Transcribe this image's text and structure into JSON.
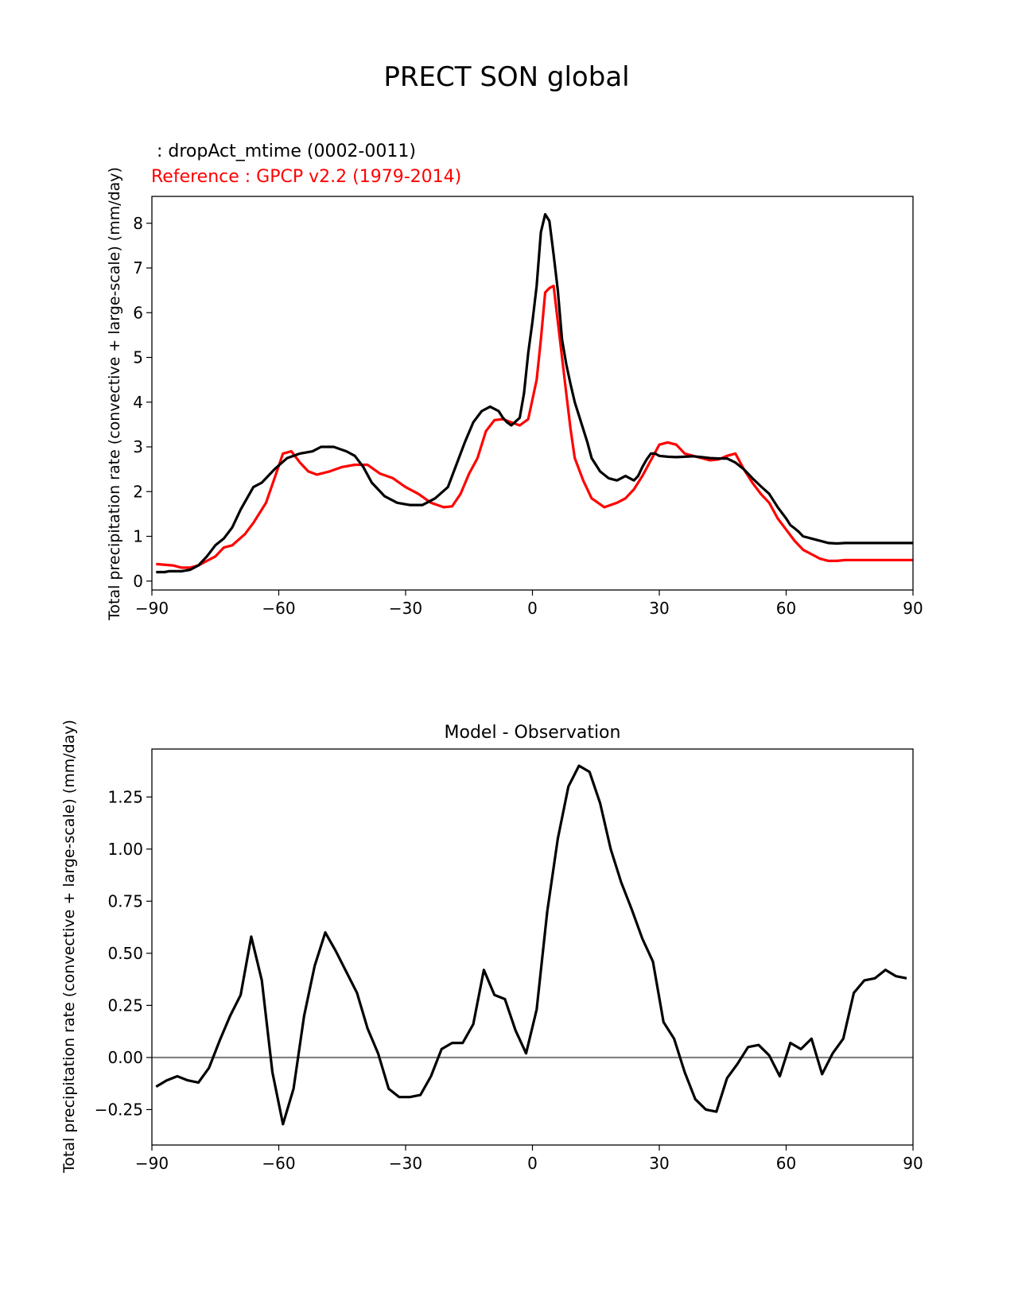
{
  "figure": {
    "suptitle": "PRECT SON global"
  },
  "chart_data": [
    {
      "type": "line",
      "title": "",
      "legend": {
        "test_label": " : dropAct_mtime (0002-0011)",
        "ref_label": "Reference : GPCP v2.2 (1979-2014)"
      },
      "xlabel": "",
      "ylabel": "Total precipitation rate (convective + large-scale) (mm/day)",
      "xlim": [
        -90,
        90
      ],
      "ylim": [
        -0.2,
        8.6
      ],
      "xticks": [
        -90,
        -60,
        -30,
        0,
        30,
        60,
        90
      ],
      "xtick_labels": [
        "−90",
        "−60",
        "−30",
        "0",
        "30",
        "60",
        "90"
      ],
      "yticks": [
        0,
        1,
        2,
        3,
        4,
        5,
        6,
        7,
        8
      ],
      "ytick_labels": [
        "0",
        "1",
        "2",
        "3",
        "4",
        "5",
        "6",
        "7",
        "8"
      ],
      "series": [
        {
          "name": "dropAct_mtime (0002-0011)",
          "color": "#000000",
          "x": [
            -89,
            -87,
            -86,
            -85,
            -83,
            -81,
            -79,
            -77,
            -75,
            -73,
            -71,
            -69,
            -66,
            -64,
            -61,
            -58,
            -55,
            -52,
            -50,
            -47,
            -44,
            -42,
            -40,
            -38,
            -35,
            -32,
            -29,
            -26,
            -23,
            -20,
            -18,
            -16,
            -14,
            -12,
            -10,
            -8,
            -7,
            -6,
            -5,
            -3,
            -2,
            -1,
            0,
            1,
            2,
            3,
            4,
            5,
            6,
            7,
            8,
            9,
            10,
            11,
            12,
            13,
            14,
            16,
            18,
            20,
            21,
            22,
            23,
            24,
            25,
            26,
            27,
            28,
            29,
            30,
            32,
            34,
            36,
            38,
            40,
            42,
            44,
            46,
            48,
            50,
            52,
            54,
            56,
            58,
            60,
            61,
            62,
            63,
            64,
            66,
            68,
            70,
            72,
            74,
            76,
            78,
            80,
            82,
            84,
            86,
            88,
            90
          ],
          "values": [
            0.2,
            0.2,
            0.22,
            0.22,
            0.22,
            0.25,
            0.35,
            0.55,
            0.8,
            0.95,
            1.2,
            1.6,
            2.1,
            2.2,
            2.5,
            2.75,
            2.85,
            2.9,
            3.0,
            3.0,
            2.9,
            2.8,
            2.55,
            2.2,
            1.9,
            1.75,
            1.7,
            1.7,
            1.85,
            2.1,
            2.6,
            3.1,
            3.55,
            3.8,
            3.9,
            3.8,
            3.65,
            3.55,
            3.48,
            3.65,
            4.2,
            5.1,
            5.8,
            6.6,
            7.8,
            8.2,
            8.05,
            7.3,
            6.5,
            5.4,
            4.85,
            4.4,
            4.0,
            3.7,
            3.4,
            3.1,
            2.75,
            2.45,
            2.3,
            2.25,
            2.3,
            2.35,
            2.3,
            2.25,
            2.35,
            2.55,
            2.72,
            2.85,
            2.85,
            2.8,
            2.78,
            2.77,
            2.78,
            2.79,
            2.77,
            2.75,
            2.74,
            2.74,
            2.65,
            2.5,
            2.3,
            2.12,
            1.95,
            1.65,
            1.4,
            1.25,
            1.18,
            1.1,
            1.0,
            0.95,
            0.9,
            0.85,
            0.84,
            0.85,
            0.85,
            0.85,
            0.85,
            0.85,
            0.85,
            0.85,
            0.85,
            0.85
          ]
        },
        {
          "name": "GPCP v2.2 (1979-2014)",
          "color": "#ff0000",
          "x": [
            -89,
            -85,
            -83,
            -81,
            -79,
            -77,
            -75,
            -73,
            -71,
            -68,
            -66,
            -63,
            -61,
            -59,
            -57,
            -55,
            -53,
            -51,
            -48,
            -45,
            -42,
            -39,
            -36,
            -33,
            -30,
            -27,
            -24,
            -21,
            -19,
            -17,
            -15,
            -13,
            -11,
            -9,
            -7,
            -5,
            -3,
            -1,
            1,
            2,
            3,
            4,
            5,
            6,
            7,
            8,
            9,
            10,
            12,
            14,
            17,
            20,
            22,
            24,
            26,
            28,
            30,
            32,
            34,
            36,
            38,
            40,
            42,
            44,
            46,
            48,
            50,
            52,
            54,
            56,
            58,
            60,
            62,
            64,
            66,
            68,
            70,
            72,
            74,
            76,
            78,
            80,
            82,
            84,
            86,
            88,
            90
          ],
          "values": [
            0.38,
            0.35,
            0.3,
            0.3,
            0.35,
            0.45,
            0.55,
            0.75,
            0.8,
            1.05,
            1.3,
            1.75,
            2.3,
            2.85,
            2.9,
            2.65,
            2.45,
            2.38,
            2.45,
            2.55,
            2.6,
            2.6,
            2.4,
            2.3,
            2.1,
            1.95,
            1.75,
            1.65,
            1.67,
            1.95,
            2.4,
            2.75,
            3.35,
            3.6,
            3.62,
            3.55,
            3.48,
            3.62,
            4.5,
            5.4,
            6.45,
            6.55,
            6.6,
            5.8,
            5.0,
            4.2,
            3.4,
            2.75,
            2.25,
            1.85,
            1.65,
            1.75,
            1.85,
            2.05,
            2.35,
            2.7,
            3.05,
            3.1,
            3.05,
            2.85,
            2.8,
            2.75,
            2.7,
            2.72,
            2.8,
            2.85,
            2.5,
            2.2,
            1.95,
            1.75,
            1.4,
            1.15,
            0.9,
            0.7,
            0.6,
            0.5,
            0.45,
            0.45,
            0.47,
            0.47,
            0.47,
            0.47,
            0.47,
            0.47,
            0.47,
            0.47,
            0.47
          ]
        }
      ]
    },
    {
      "type": "line",
      "title": "Model - Observation",
      "xlabel": "",
      "ylabel": "Total precipitation rate (convective + large-scale) (mm/day)",
      "xlim": [
        -90,
        90
      ],
      "ylim": [
        -0.42,
        1.48
      ],
      "xticks": [
        -90,
        -60,
        -30,
        0,
        30,
        60,
        90
      ],
      "xtick_labels": [
        "−90",
        "−60",
        "−30",
        "0",
        "30",
        "60",
        "90"
      ],
      "yticks": [
        -0.25,
        0.0,
        0.25,
        0.5,
        0.75,
        1.0,
        1.25
      ],
      "ytick_labels": [
        "−0.25",
        "0.00",
        "0.25",
        "0.50",
        "0.75",
        "1.00",
        "1.25"
      ],
      "zero_line": {
        "y": 0,
        "color": "#808080"
      },
      "series": [
        {
          "name": "Model - Observation",
          "color": "#000000",
          "x": [
            -89,
            -86.5,
            -84,
            -81.5,
            -79,
            -76.5,
            -74,
            -71.5,
            -69,
            -66.5,
            -64,
            -61.5,
            -59,
            -56.5,
            -54,
            -51.5,
            -49,
            -46.5,
            -44,
            -41.5,
            -39,
            -36.5,
            -34,
            -31.5,
            -29,
            -26.5,
            -24,
            -21.5,
            -19,
            -16.5,
            -14,
            -11.5,
            -9,
            -6.5,
            -4,
            -1.5,
            1,
            3.5,
            6,
            8.5,
            11,
            13.5,
            16,
            18.5,
            21,
            23.5,
            26,
            28.5,
            31,
            33.5,
            36,
            38.5,
            41,
            43.5,
            46,
            48.5,
            51,
            53.5,
            56,
            58.5,
            61,
            63.5,
            66,
            68.5,
            71,
            73.5,
            76,
            78.5,
            81,
            83.5,
            86,
            88.5
          ],
          "values": [
            -0.14,
            -0.11,
            -0.09,
            -0.11,
            -0.12,
            -0.05,
            0.08,
            0.2,
            0.3,
            0.58,
            0.37,
            -0.07,
            -0.32,
            -0.15,
            0.2,
            0.44,
            0.6,
            0.51,
            0.41,
            0.31,
            0.14,
            0.02,
            -0.15,
            -0.19,
            -0.19,
            -0.18,
            -0.09,
            0.04,
            0.07,
            0.07,
            0.16,
            0.42,
            0.3,
            0.28,
            0.13,
            0.02,
            0.23,
            0.7,
            1.05,
            1.3,
            1.4,
            1.37,
            1.22,
            1.0,
            0.84,
            0.71,
            0.57,
            0.46,
            0.17,
            0.09,
            -0.07,
            -0.2,
            -0.25,
            -0.26,
            -0.1,
            -0.03,
            0.05,
            0.06,
            0.01,
            -0.09,
            0.07,
            0.04,
            0.09,
            -0.08,
            0.02,
            0.09,
            0.31,
            0.37,
            0.38,
            0.42,
            0.39,
            0.38
          ]
        }
      ]
    }
  ]
}
